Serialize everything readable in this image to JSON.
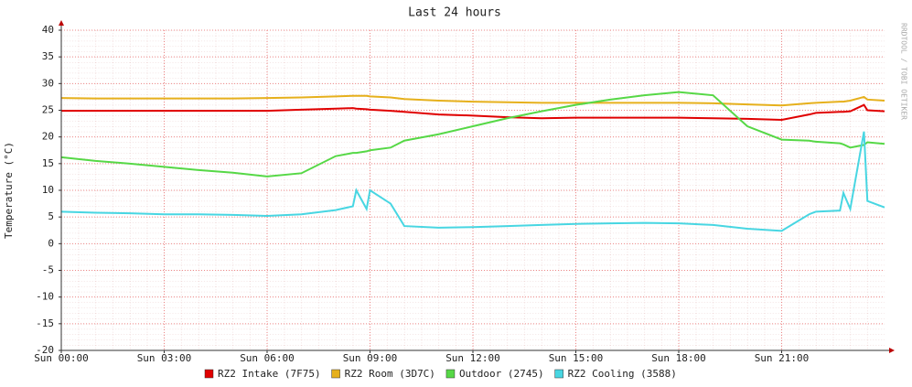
{
  "chart_data": {
    "type": "line",
    "title": "Last 24 hours",
    "side_label": "RRDTOOL / TOBI OETIKER",
    "y_label": "Temperature (°C)",
    "x": [
      0,
      1,
      2,
      3,
      4,
      5,
      6,
      7,
      8,
      8.5,
      8.6,
      8.9,
      9,
      9.6,
      10,
      11,
      12,
      13,
      14,
      15,
      16,
      17,
      18,
      19,
      20,
      21,
      21.8,
      22,
      22.7,
      22.8,
      23,
      23.4,
      23.5,
      24
    ],
    "series": [
      {
        "name": "RZ2 Intake (7F75)",
        "color": "#e00000",
        "values": [
          24.9,
          24.9,
          24.9,
          24.9,
          24.9,
          24.9,
          24.9,
          25.1,
          25.3,
          25.4,
          25.3,
          25.2,
          25.1,
          24.9,
          24.7,
          24.2,
          24.0,
          23.7,
          23.5,
          23.6,
          23.6,
          23.6,
          23.6,
          23.5,
          23.4,
          23.2,
          24.2,
          24.5,
          24.7,
          24.7,
          24.8,
          26,
          25,
          24.8
        ]
      },
      {
        "name": "RZ2 Room (3D7C)",
        "color": "#e6b01c",
        "values": [
          27.3,
          27.2,
          27.2,
          27.2,
          27.2,
          27.2,
          27.3,
          27.4,
          27.6,
          27.7,
          27.7,
          27.7,
          27.6,
          27.4,
          27.1,
          26.8,
          26.6,
          26.5,
          26.4,
          26.4,
          26.4,
          26.4,
          26.4,
          26.3,
          26.1,
          25.9,
          26.3,
          26.4,
          26.6,
          26.6,
          26.8,
          27.5,
          27,
          26.8
        ]
      },
      {
        "name": "Outdoor (2745)",
        "color": "#56d846",
        "values": [
          16.2,
          15.5,
          15,
          14.4,
          13.8,
          13.3,
          12.6,
          13.2,
          16.4,
          17,
          17,
          17.3,
          17.5,
          18,
          19.3,
          20.5,
          22,
          23.5,
          24.8,
          26,
          27,
          27.8,
          28.4,
          27.8,
          22,
          19.5,
          19.3,
          19.1,
          18.8,
          18.6,
          18,
          18.5,
          19,
          18.7
        ]
      },
      {
        "name": "RZ2 Cooling (3588)",
        "color": "#48d6e2",
        "values": [
          6,
          5.8,
          5.7,
          5.5,
          5.5,
          5.4,
          5.2,
          5.5,
          6.3,
          7,
          10,
          6.5,
          10,
          7.5,
          3.3,
          3.0,
          3.1,
          3.3,
          3.5,
          3.7,
          3.8,
          3.9,
          3.8,
          3.5,
          2.8,
          2.4,
          5.5,
          6,
          6.2,
          9.5,
          6.5,
          21,
          8,
          6.8
        ]
      }
    ],
    "xlim": [
      0,
      24
    ],
    "xticks": [
      {
        "value": 0,
        "label": "Sun 00:00"
      },
      {
        "value": 3,
        "label": "Sun 03:00"
      },
      {
        "value": 6,
        "label": "Sun 06:00"
      },
      {
        "value": 9,
        "label": "Sun 09:00"
      },
      {
        "value": 12,
        "label": "Sun 12:00"
      },
      {
        "value": 15,
        "label": "Sun 15:00"
      },
      {
        "value": 18,
        "label": "Sun 18:00"
      },
      {
        "value": 21,
        "label": "Sun 21:00"
      }
    ],
    "ylim": [
      -20,
      40
    ],
    "yticks": [
      -20,
      -15,
      -10,
      -5,
      0,
      5,
      10,
      15,
      20,
      25,
      30,
      35,
      40
    ],
    "grid": true
  }
}
